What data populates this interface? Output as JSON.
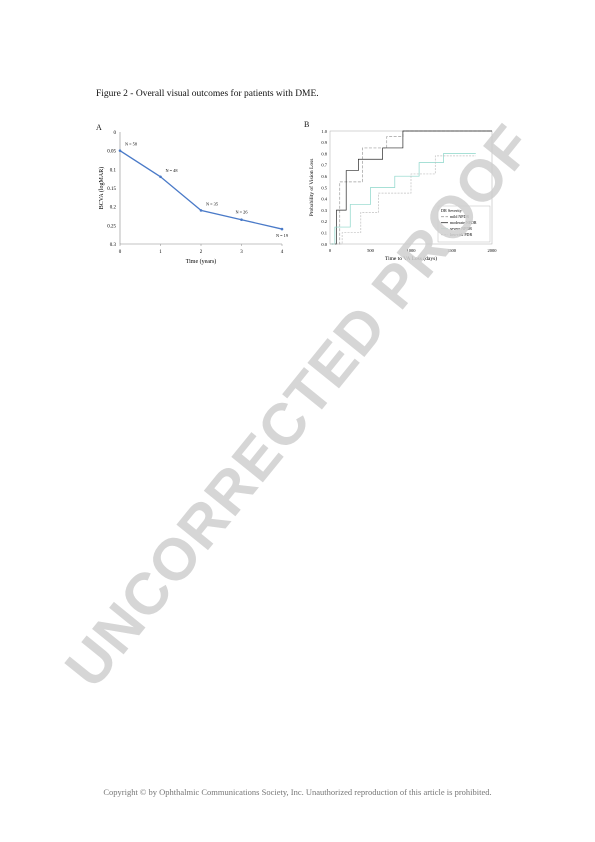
{
  "figure": {
    "caption": "Figure 2 - Overall visual outcomes for patients with DME."
  },
  "watermark": {
    "text": "UNCORRECTED PROOF"
  },
  "footer": {
    "text": "Copyright © by Ophthalmic Communications Society, Inc. Unauthorized reproduction of this article is prohibited."
  },
  "chart_data": [
    {
      "panel": "A",
      "type": "line",
      "title": "",
      "xlabel": "Time (years)",
      "ylabel": "BCVA (logMAR)",
      "x": [
        0,
        1,
        2,
        3,
        4
      ],
      "xticks": [
        "0",
        "1",
        "2",
        "3",
        "4"
      ],
      "yticks": [
        "0",
        "0.05",
        "0.1",
        "0.15",
        "0.2",
        "0.25",
        "0.3"
      ],
      "ylim": [
        0,
        0.3
      ],
      "y_inverted": true,
      "series": [
        {
          "values": [
            0.05,
            0.12,
            0.21,
            0.235,
            0.26
          ],
          "color": "#4a7ac8"
        }
      ],
      "annotations": [
        "N = 58",
        "N = 48",
        "N = 35",
        "N = 26",
        "N = 19"
      ]
    },
    {
      "panel": "B",
      "type": "line",
      "title": "",
      "xlabel": "Time to VA Loss (days)",
      "ylabel": "Probability of Vision Loss",
      "xlim": [
        0,
        2000
      ],
      "ylim": [
        0,
        1
      ],
      "xticks": [
        "0",
        "500",
        "1000",
        "1500",
        "2000"
      ],
      "yticks": [
        "0.0",
        "0.1",
        "0.2",
        "0.3",
        "0.4",
        "0.5",
        "0.6",
        "0.7",
        "0.8",
        "0.9",
        "1.0"
      ],
      "legend": {
        "title": "DR Severity",
        "position": "bottom-right",
        "entries": [
          "mild NPDR",
          "moderate NPDR",
          "severe NPDR",
          "low-risk PDR"
        ]
      },
      "series": [
        {
          "name": "mild NPDR",
          "color": "#9e9e9e",
          "x": [
            0,
            120,
            120,
            400,
            400,
            700,
            700,
            900,
            900,
            2000
          ],
          "values": [
            0,
            0,
            0.55,
            0.55,
            0.85,
            0.85,
            0.95,
            0.95,
            1.0,
            1.0
          ]
        },
        {
          "name": "moderate NPDR",
          "color": "#2a2a2a",
          "x": [
            0,
            80,
            80,
            200,
            200,
            350,
            350,
            650,
            650,
            900,
            900,
            2000
          ],
          "values": [
            0,
            0,
            0.3,
            0.3,
            0.65,
            0.65,
            0.75,
            0.75,
            0.85,
            0.85,
            1.0,
            1.0
          ]
        },
        {
          "name": "severe NPDR",
          "color": "#8ad6c9",
          "x": [
            0,
            60,
            60,
            250,
            250,
            500,
            500,
            800,
            800,
            1100,
            1100,
            1400,
            1400,
            1800
          ],
          "values": [
            0,
            0,
            0.15,
            0.15,
            0.35,
            0.35,
            0.5,
            0.5,
            0.6,
            0.6,
            0.72,
            0.72,
            0.8,
            0.8
          ]
        },
        {
          "name": "low-risk PDR",
          "color": "#c0c0c0",
          "x": [
            0,
            150,
            150,
            380,
            380,
            600,
            600,
            1000,
            1000,
            1300,
            1300,
            1800
          ],
          "values": [
            0,
            0,
            0.1,
            0.1,
            0.28,
            0.28,
            0.45,
            0.45,
            0.62,
            0.62,
            0.78,
            0.78
          ]
        }
      ]
    }
  ]
}
